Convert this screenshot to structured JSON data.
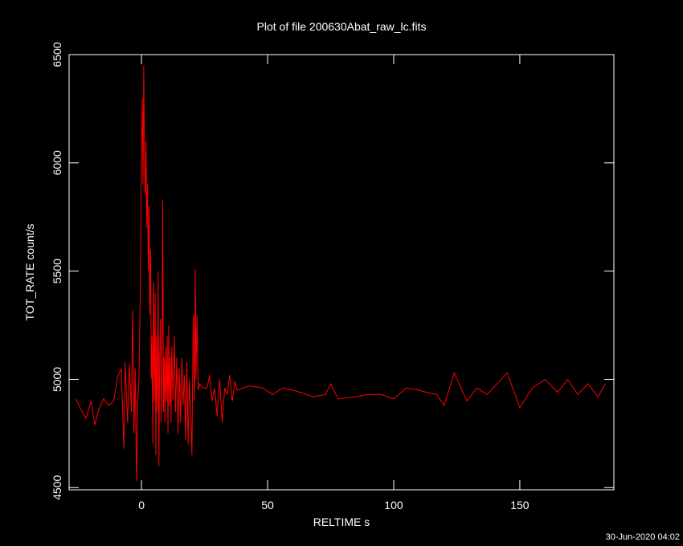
{
  "chart_data": {
    "type": "line",
    "title": "Plot of file 200630Abat_raw_lc.fits",
    "x_label": "RELTIME  s",
    "y_label": "TOT_RATE  count/s",
    "footer": "30-Jun-2020 04:02",
    "xlim": [
      -28.7,
      187.3
    ],
    "ylim": [
      4490,
      6500
    ],
    "xticks": [
      0,
      50,
      100,
      150
    ],
    "yticks": [
      4500,
      5000,
      5500,
      6000,
      6500
    ],
    "x": [
      -26,
      -24,
      -22,
      -20,
      -18.5,
      -17,
      -15,
      -13,
      -11,
      -9.5,
      -8,
      -7,
      -6.5,
      -5.5,
      -4.8,
      -4,
      -3.5,
      -3,
      -2.5,
      -2,
      -1.5,
      -1,
      -0.5,
      0,
      0.3,
      0.6,
      0.9,
      1.2,
      1.5,
      1.8,
      2.1,
      2.4,
      2.7,
      3,
      3.3,
      3.6,
      3.9,
      4.2,
      4.5,
      4.8,
      5.1,
      5.4,
      5.7,
      6,
      6.3,
      6.6,
      6.9,
      7.2,
      7.5,
      7.8,
      8.1,
      8.4,
      8.7,
      9,
      9.3,
      9.6,
      9.9,
      10.2,
      10.5,
      10.8,
      11.1,
      11.4,
      11.7,
      12,
      12.5,
      13,
      13.5,
      14,
      14.5,
      15,
      15.5,
      16,
      16.5,
      17,
      17.5,
      18,
      18.5,
      19,
      19.5,
      20,
      20.5,
      21,
      21.3,
      21.6,
      22,
      22.5,
      23,
      24.5,
      26,
      27,
      28,
      29,
      30,
      31,
      32,
      33,
      34,
      35,
      36,
      37,
      38,
      40,
      43,
      48,
      52,
      56,
      60,
      63,
      68,
      73,
      75,
      78,
      85,
      90,
      95,
      100,
      105,
      110,
      113,
      117,
      120,
      124,
      129,
      133,
      137,
      145,
      150,
      155,
      160,
      165,
      169,
      173,
      177,
      181,
      184
    ],
    "series": [
      {
        "name": "TOT_RATE",
        "color": "#ff0000",
        "values": [
          4910,
          4860,
          4820,
          4900,
          4790,
          4860,
          4910,
          4880,
          4900,
          5010,
          5050,
          4680,
          5080,
          4800,
          5070,
          4850,
          5320,
          4750,
          5050,
          4530,
          4900,
          5000,
          5400,
          6100,
          6300,
          5900,
          6450,
          6000,
          5850,
          6100,
          5700,
          5900,
          5500,
          5800,
          5300,
          5600,
          5000,
          5200,
          4700,
          5450,
          4900,
          5400,
          4650,
          5200,
          4850,
          5500,
          4600,
          5100,
          5280,
          4800,
          5050,
          5830,
          4850,
          5100,
          4800,
          5150,
          4900,
          5200,
          4750,
          5250,
          4880,
          5100,
          4800,
          5150,
          4900,
          5200,
          4850,
          5100,
          4750,
          5050,
          4800,
          5100,
          4880,
          5020,
          4720,
          5080,
          4700,
          5000,
          4850,
          4650,
          5300,
          4900,
          5510,
          5000,
          5300,
          4950,
          4980,
          4960,
          4960,
          5020,
          4900,
          4960,
          4830,
          5000,
          4800,
          4960,
          4930,
          5020,
          4900,
          4990,
          4950,
          4960,
          4970,
          4960,
          4930,
          4960,
          4950,
          4940,
          4920,
          4930,
          4980,
          4910,
          4920,
          4930,
          4930,
          4910,
          4960,
          4950,
          4940,
          4930,
          4880,
          5030,
          4900,
          4960,
          4930,
          5030,
          4870,
          4960,
          5000,
          4940,
          5000,
          4930,
          4980,
          4920,
          4980
        ]
      }
    ]
  }
}
